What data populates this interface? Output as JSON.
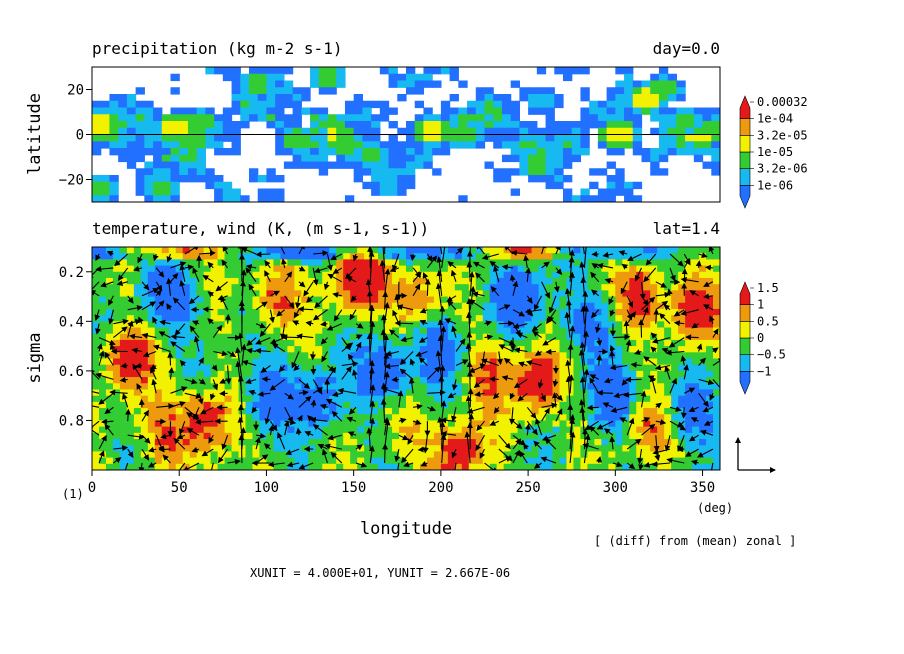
{
  "top_panel": {
    "title": "precipitation (kg m-2 s-1)",
    "right_label": "day=0.0",
    "ylabel": "latitude",
    "yticks": [
      "20",
      "0",
      "−20"
    ]
  },
  "bottom_panel": {
    "title": "temperature, wind (K, (m s-1, s-1))",
    "right_label": "lat=1.4",
    "ylabel": "sigma",
    "yticks": [
      "0.2",
      "0.4",
      "0.6",
      "0.8"
    ],
    "xticks": [
      "0",
      "50",
      "100",
      "150",
      "200",
      "250",
      "300",
      "350"
    ],
    "xlabel": "longitude",
    "xunit": "(deg)",
    "figure_index": "(1)",
    "diff_note": "[ (diff) from (mean) zonal ]",
    "unit_note": "XUNIT = 4.000E+01, YUNIT = 2.667E-06"
  },
  "colors": {
    "white": "#ffffff",
    "blue": "#2270ff",
    "cyan": "#16b9f0",
    "green": "#33cc33",
    "yellow": "#f2f200",
    "orange": "#ee9a0e",
    "red": "#e41a1a"
  },
  "chart_data": [
    {
      "type": "heatmap",
      "title": "precipitation (kg m-2 s-1)",
      "annotation": "day=0.0",
      "xlabel": "",
      "ylabel": "latitude",
      "xlim": [
        0,
        360
      ],
      "ylim": [
        -30,
        30
      ],
      "yticks": [
        20,
        0,
        -20
      ],
      "reference_line_y": 0,
      "log_scale": true,
      "colorbar_labels": [
        "0.00032",
        "1e-04",
        "3.2e-05",
        "1e-05",
        "3.2e-06",
        "1e-06"
      ],
      "levels": [
        1e-06,
        3.2e-06,
        1e-05,
        3.2e-05,
        0.0001,
        0.00032
      ],
      "level_colors": [
        "#2270ff",
        "#16b9f0",
        "#33cc33",
        "#f2f200",
        "#ee9a0e",
        "#e41a1a"
      ],
      "hotspots": [
        {
          "lon": 5,
          "lat": 5,
          "v": 5
        },
        {
          "lon": 48,
          "lat": 3,
          "v": 5
        },
        {
          "lon": 57,
          "lat": -3,
          "v": 4
        },
        {
          "lon": 62,
          "lat": 5,
          "v": 4
        },
        {
          "lon": 95,
          "lat": 23,
          "v": 4
        },
        {
          "lon": 118,
          "lat": -2,
          "v": 4
        },
        {
          "lon": 135,
          "lat": 25,
          "v": 4
        },
        {
          "lon": 145,
          "lat": -5,
          "v": 4
        },
        {
          "lon": 160,
          "lat": -9,
          "v": 4
        },
        {
          "lon": 195,
          "lat": 2,
          "v": 5
        },
        {
          "lon": 213,
          "lat": 0,
          "v": 4
        },
        {
          "lon": 258,
          "lat": 15,
          "v": 3
        },
        {
          "lon": 255,
          "lat": -14,
          "v": 4
        },
        {
          "lon": 265,
          "lat": -7,
          "v": 3
        },
        {
          "lon": 302,
          "lat": 0,
          "v": 5
        },
        {
          "lon": 318,
          "lat": 16,
          "v": 5
        },
        {
          "lon": 328,
          "lat": 20,
          "v": 4
        },
        {
          "lon": 340,
          "lat": 6,
          "v": 4
        },
        {
          "lon": 355,
          "lat": 2,
          "v": 4
        },
        {
          "lon": 5,
          "lat": -24,
          "v": 4
        },
        {
          "lon": 40,
          "lat": -24,
          "v": 4
        },
        {
          "lon": 35,
          "lat": -22,
          "v": 3
        }
      ]
    },
    {
      "type": "heatmap",
      "title": "temperature, wind (K, (m s-1, s-1))",
      "annotation": "lat=1.4",
      "xlabel": "longitude",
      "x_unit": "(deg)",
      "ylabel": "sigma",
      "xlim": [
        0,
        360
      ],
      "ylim": [
        1.0,
        0.1
      ],
      "x_ticks": [
        0,
        50,
        100,
        150,
        200,
        250,
        300,
        350
      ],
      "y_ticks": [
        0.2,
        0.4,
        0.6,
        0.8
      ],
      "colorbar_labels": [
        "1.5",
        "1",
        "0.5",
        "0",
        "−0.5",
        "−1"
      ],
      "levels": [
        -1,
        -0.5,
        0,
        0.5,
        1,
        1.5
      ],
      "level_colors": [
        "#2270ff",
        "#16b9f0",
        "#33cc33",
        "#f2f200",
        "#ee9a0e",
        "#e41a1a"
      ],
      "overlay": "wind vectors",
      "anomalies": [
        {
          "lon": 45,
          "sigma": 0.125,
          "v": 1.7
        },
        {
          "lon": 5,
          "sigma": 0.125,
          "v": -1.3
        },
        {
          "lon": 45,
          "sigma": 0.3,
          "v": -1.6
        },
        {
          "lon": 20,
          "sigma": 0.55,
          "v": 1.8
        },
        {
          "lon": 65,
          "sigma": 0.8,
          "v": 1.8
        },
        {
          "lon": 40,
          "sigma": 0.85,
          "v": 1.2
        },
        {
          "lon": 115,
          "sigma": 0.125,
          "v": -1.5
        },
        {
          "lon": 105,
          "sigma": 0.3,
          "v": 1.4
        },
        {
          "lon": 100,
          "sigma": 0.7,
          "v": -1.4
        },
        {
          "lon": 130,
          "sigma": 0.72,
          "v": -1.3
        },
        {
          "lon": 150,
          "sigma": 0.25,
          "v": 0.9
        },
        {
          "lon": 155,
          "sigma": 0.2,
          "v": 1.6
        },
        {
          "lon": 160,
          "sigma": 0.125,
          "v": -1.5
        },
        {
          "lon": 170,
          "sigma": 0.6,
          "v": -1.5
        },
        {
          "lon": 185,
          "sigma": 0.3,
          "v": 1.5
        },
        {
          "lon": 200,
          "sigma": 0.5,
          "v": -1.4
        },
        {
          "lon": 210,
          "sigma": 0.92,
          "v": 1.8
        },
        {
          "lon": 205,
          "sigma": 0.125,
          "v": -1.2
        },
        {
          "lon": 245,
          "sigma": 0.125,
          "v": 1.7
        },
        {
          "lon": 245,
          "sigma": 0.3,
          "v": -1.5
        },
        {
          "lon": 255,
          "sigma": 0.65,
          "v": 1.8
        },
        {
          "lon": 228,
          "sigma": 0.6,
          "v": 1.3
        },
        {
          "lon": 305,
          "sigma": 0.125,
          "v": -1.5
        },
        {
          "lon": 315,
          "sigma": 0.3,
          "v": 1.6
        },
        {
          "lon": 345,
          "sigma": 0.35,
          "v": 1.8
        },
        {
          "lon": 300,
          "sigma": 0.7,
          "v": -1.4
        },
        {
          "lon": 320,
          "sigma": 0.85,
          "v": 1.1
        },
        {
          "lon": 345,
          "sigma": 0.75,
          "v": -0.9
        },
        {
          "lon": 283,
          "sigma": 0.4,
          "v": -1.0
        },
        {
          "lon": 180,
          "sigma": 0.85,
          "v": 0.6
        }
      ]
    }
  ]
}
